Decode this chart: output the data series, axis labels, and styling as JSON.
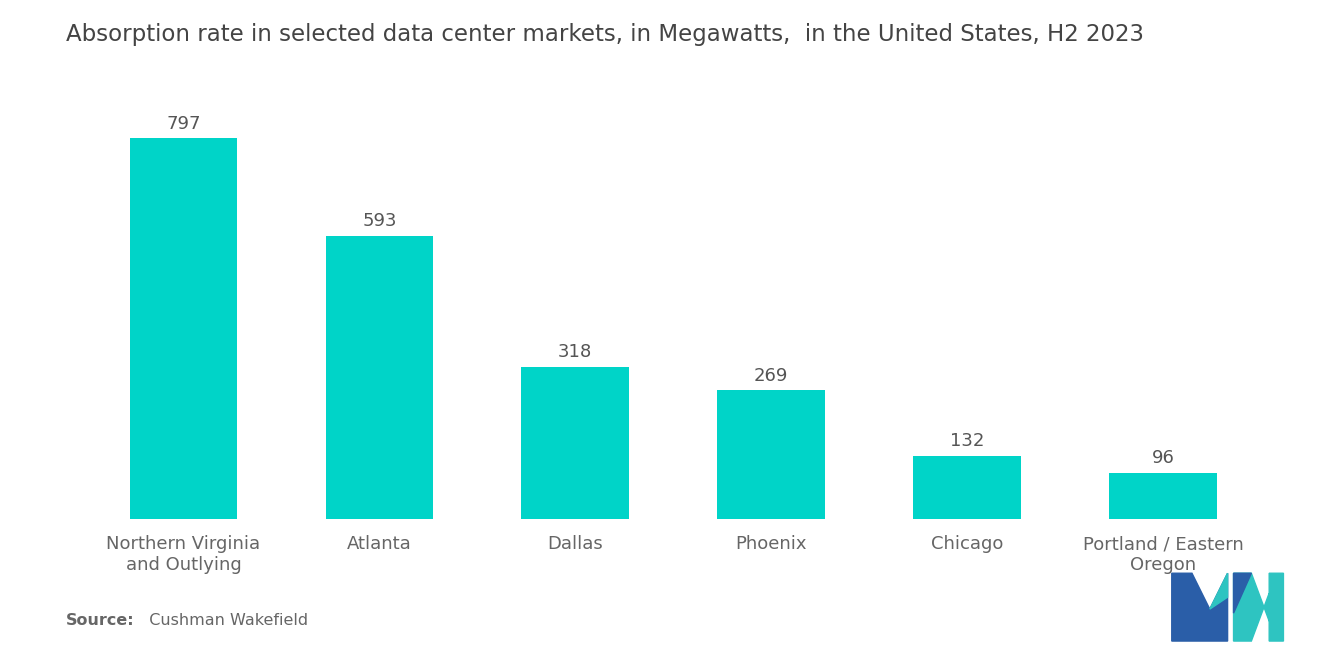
{
  "title": "Absorption rate in selected data center markets, in Megawatts,  in the United States, H2 2023",
  "categories": [
    "Northern Virginia\nand Outlying",
    "Atlanta",
    "Dallas",
    "Phoenix",
    "Chicago",
    "Portland / Eastern\nOregon"
  ],
  "values": [
    797,
    593,
    318,
    269,
    132,
    96
  ],
  "bar_color": "#00D4C8",
  "background_color": "#ffffff",
  "title_fontsize": 16.5,
  "label_fontsize": 13,
  "value_fontsize": 13,
  "source_bold": "Source:",
  "source_normal": "  Cushman Wakefield",
  "ylim": [
    0,
    920
  ],
  "bar_width": 0.55,
  "logo_blue": "#2A5EA8",
  "logo_teal": "#2EC4C1"
}
